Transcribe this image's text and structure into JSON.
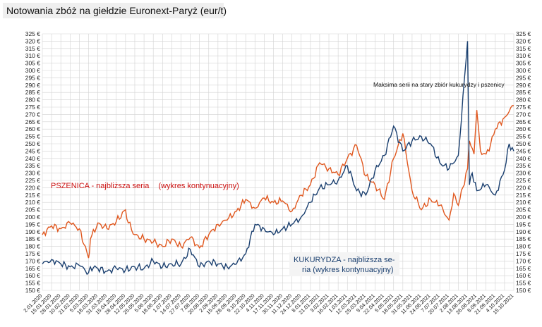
{
  "chart_data": {
    "type": "line",
    "title": "Notowania zbóż na giełdzie Euronext-Paryż (eur/t)",
    "y_unit_suffix": " €",
    "ylim": [
      150,
      325
    ],
    "y_tick_step": 5,
    "grid": true,
    "x_tick_labels": [
      "2.01.2020",
      "15.01.2020",
      "28.01.2020",
      "10.02.2020",
      "21.02.2020",
      "5.03.2020",
      "18.03.2020",
      "31.03.2020",
      "15.04.2020",
      "28.04.2020",
      "12.05.2020",
      "25.05.2020",
      "5.06.2020",
      "18.06.2020",
      "1.07.2020",
      "14.07.2020",
      "27.07.2020",
      "7.08.2020",
      "20.08.2020",
      "2.09.2020",
      "15.09.2020",
      "28.09.2020",
      "9.10.2020",
      "22.10.2020",
      "4.11.2020",
      "17.11.2020",
      "30.11.2020",
      "11.12.2020",
      "24.12.2020",
      "8.01.2021",
      "21.01.2021",
      "3.02.2021",
      "16.02.2021",
      "1.03.2021",
      "12.03.2021",
      "25.03.2021",
      "9.04.2021",
      "22.04.2021",
      "5.05.2021",
      "18.05.2021",
      "31.05.2021",
      "11.06.2021",
      "24.06.2021",
      "7.07.2021",
      "20.07.2021",
      "2.08.2021",
      "13.08.2021",
      "26.08.2021",
      "8.09.2021",
      "21.09.2021",
      "4.10.2021",
      "15.10.2021"
    ],
    "series": [
      {
        "name": "PSZENICA - najbliższa seria",
        "name_suffix": "(wykres kontynuacyjny)",
        "color": "#e0571e",
        "label_color": "#cc1111",
        "values": [
          [
            0,
            188
          ],
          [
            1,
            194
          ],
          [
            2,
            192
          ],
          [
            3,
            196
          ],
          [
            4,
            192
          ],
          [
            5,
            172
          ],
          [
            5.2,
            185
          ],
          [
            6,
            196
          ],
          [
            7,
            192
          ],
          [
            8,
            197
          ],
          [
            9,
            205
          ],
          [
            9.3,
            196
          ],
          [
            10,
            188
          ],
          [
            11,
            185
          ],
          [
            12,
            183
          ],
          [
            13,
            180
          ],
          [
            14,
            185
          ],
          [
            15,
            180
          ],
          [
            16,
            186
          ],
          [
            17,
            179
          ],
          [
            18,
            188
          ],
          [
            19,
            195
          ],
          [
            20,
            198
          ],
          [
            21,
            204
          ],
          [
            22,
            212
          ],
          [
            23,
            206
          ],
          [
            24,
            213
          ],
          [
            25,
            210
          ],
          [
            26,
            211
          ],
          [
            27,
            204
          ],
          [
            28,
            215
          ],
          [
            29,
            222
          ],
          [
            30,
            237
          ],
          [
            31,
            233
          ],
          [
            32,
            229
          ],
          [
            33,
            240
          ],
          [
            34,
            249
          ],
          [
            35,
            228
          ],
          [
            36,
            222
          ],
          [
            37,
            212
          ],
          [
            38,
            240
          ],
          [
            39,
            257
          ],
          [
            40,
            218
          ],
          [
            41,
            205
          ],
          [
            42,
            212
          ],
          [
            43,
            208
          ],
          [
            44,
            198
          ],
          [
            44.5,
            216
          ],
          [
            45,
            208
          ],
          [
            46,
            233
          ],
          [
            46.2,
            252
          ],
          [
            46.7,
            243
          ],
          [
            47,
            273
          ],
          [
            47.4,
            245
          ],
          [
            48,
            243
          ],
          [
            48.5,
            250
          ],
          [
            49,
            260
          ],
          [
            50,
            268
          ],
          [
            50.5,
            272
          ],
          [
            51,
            276
          ]
        ]
      },
      {
        "name": "KUKURYDZA - najbliższa se-",
        "name_suffix": "ria (wykres kontynuacyjny)",
        "color": "#1a3f6f",
        "label_color": "#1a3f6f",
        "values": [
          [
            0,
            168
          ],
          [
            1,
            171
          ],
          [
            2,
            168
          ],
          [
            3,
            166
          ],
          [
            4,
            167
          ],
          [
            5,
            162
          ],
          [
            5.2,
            166
          ],
          [
            6,
            165
          ],
          [
            7,
            163
          ],
          [
            8,
            165
          ],
          [
            9,
            164
          ],
          [
            10,
            166
          ],
          [
            11,
            165
          ],
          [
            12,
            170
          ],
          [
            13,
            166
          ],
          [
            14,
            168
          ],
          [
            15,
            168
          ],
          [
            16,
            178
          ],
          [
            17,
            166
          ],
          [
            18,
            170
          ],
          [
            19,
            168
          ],
          [
            20,
            166
          ],
          [
            21,
            168
          ],
          [
            22,
            175
          ],
          [
            23,
            195
          ],
          [
            24,
            192
          ],
          [
            25,
            188
          ],
          [
            26,
            192
          ],
          [
            27,
            195
          ],
          [
            28,
            200
          ],
          [
            29,
            210
          ],
          [
            30,
            220
          ],
          [
            31,
            222
          ],
          [
            32,
            225
          ],
          [
            33,
            235
          ],
          [
            34,
            218
          ],
          [
            35,
            215
          ],
          [
            36,
            232
          ],
          [
            37,
            242
          ],
          [
            38,
            262
          ],
          [
            39,
            245
          ],
          [
            40,
            252
          ],
          [
            41,
            255
          ],
          [
            42,
            250
          ],
          [
            43,
            237
          ],
          [
            44,
            233
          ],
          [
            45,
            242
          ],
          [
            46,
            320
          ],
          [
            46.2,
            222
          ],
          [
            46.5,
            230
          ],
          [
            47,
            218
          ],
          [
            48,
            222
          ],
          [
            49,
            215
          ],
          [
            50,
            232
          ],
          [
            50.5,
            250
          ],
          [
            51,
            245
          ]
        ]
      }
    ],
    "annotations": [
      "Maksima serii na stary zbiór kukurydzy i pszenicy"
    ]
  }
}
